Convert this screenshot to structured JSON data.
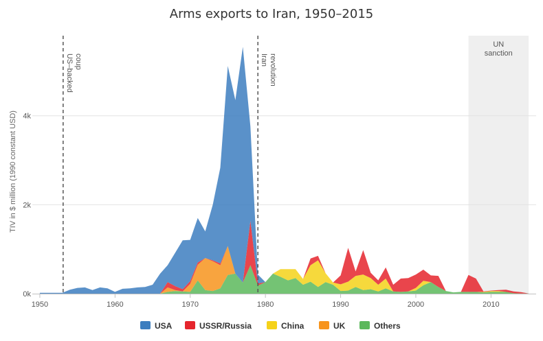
{
  "chart_data": {
    "type": "area",
    "stacked": true,
    "title": "Arms exports to Iran, 1950–2015",
    "ylabel": "TIV in $ million (1990 constant USD)",
    "xlim": [
      1949,
      2016
    ],
    "ylim": [
      0,
      5800
    ],
    "grid": "horizontal",
    "legend_position": "bottom",
    "x_ticks": [
      1950,
      1960,
      1970,
      1980,
      1990,
      2000,
      2010
    ],
    "x_tick_labels": [
      "1950",
      "1960",
      "1970",
      "1980",
      "1990",
      "2000",
      "2010"
    ],
    "y_ticks": [
      0,
      2000,
      4000
    ],
    "y_tick_labels": [
      "0k",
      "2k",
      "4k"
    ],
    "x": [
      1950,
      1951,
      1952,
      1953,
      1954,
      1955,
      1956,
      1957,
      1958,
      1959,
      1960,
      1961,
      1962,
      1963,
      1964,
      1965,
      1966,
      1967,
      1968,
      1969,
      1970,
      1971,
      1972,
      1973,
      1974,
      1975,
      1976,
      1977,
      1978,
      1979,
      1980,
      1981,
      1982,
      1983,
      1984,
      1985,
      1986,
      1987,
      1988,
      1989,
      1990,
      1991,
      1992,
      1993,
      1994,
      1995,
      1996,
      1997,
      1998,
      1999,
      2000,
      2001,
      2002,
      2003,
      2004,
      2005,
      2006,
      2007,
      2008,
      2009,
      2010,
      2011,
      2012,
      2013,
      2014,
      2015
    ],
    "series": [
      {
        "name": "Others",
        "color": "#5cb85c",
        "values": [
          0,
          0,
          0,
          0,
          0,
          0,
          0,
          0,
          0,
          0,
          0,
          0,
          0,
          0,
          0,
          0,
          0,
          40,
          60,
          50,
          40,
          300,
          80,
          60,
          120,
          420,
          450,
          250,
          640,
          180,
          260,
          450,
          380,
          300,
          350,
          200,
          270,
          150,
          260,
          200,
          60,
          70,
          150,
          80,
          100,
          50,
          120,
          50,
          40,
          50,
          70,
          190,
          260,
          150,
          60,
          30,
          40,
          40,
          40,
          30,
          40,
          40,
          40,
          10,
          5,
          5
        ]
      },
      {
        "name": "UK",
        "color": "#f7941d",
        "values": [
          0,
          0,
          0,
          0,
          0,
          0,
          0,
          0,
          0,
          0,
          0,
          0,
          0,
          0,
          0,
          0,
          0,
          100,
          20,
          0,
          180,
          350,
          720,
          670,
          520,
          650,
          0,
          0,
          0,
          0,
          0,
          0,
          0,
          0,
          0,
          0,
          0,
          0,
          0,
          0,
          0,
          0,
          0,
          0,
          0,
          0,
          0,
          0,
          0,
          0,
          0,
          0,
          0,
          0,
          0,
          0,
          0,
          0,
          0,
          0,
          0,
          0,
          0,
          0,
          0,
          0
        ]
      },
      {
        "name": "China",
        "color": "#f5d21a",
        "values": [
          0,
          0,
          0,
          0,
          0,
          0,
          0,
          0,
          0,
          0,
          0,
          0,
          0,
          0,
          0,
          0,
          0,
          0,
          0,
          0,
          0,
          0,
          0,
          0,
          0,
          0,
          0,
          0,
          0,
          0,
          0,
          0,
          170,
          250,
          200,
          130,
          370,
          600,
          200,
          50,
          150,
          200,
          250,
          350,
          250,
          150,
          220,
          0,
          0,
          0,
          60,
          100,
          0,
          0,
          0,
          0,
          0,
          0,
          0,
          10,
          20,
          20,
          0,
          0,
          0,
          0
        ]
      },
      {
        "name": "USSR/Russia",
        "color": "#e5252d",
        "values": [
          0,
          0,
          0,
          0,
          0,
          0,
          0,
          0,
          0,
          0,
          0,
          0,
          0,
          0,
          0,
          0,
          0,
          120,
          90,
          50,
          60,
          50,
          0,
          20,
          40,
          0,
          0,
          0,
          1000,
          50,
          0,
          0,
          0,
          0,
          0,
          0,
          150,
          100,
          0,
          0,
          200,
          760,
          100,
          550,
          120,
          100,
          250,
          150,
          300,
          300,
          300,
          250,
          150,
          250,
          0,
          0,
          0,
          380,
          300,
          10,
          10,
          20,
          50,
          40,
          30,
          0
        ]
      },
      {
        "name": "USA",
        "color": "#3d7ebf",
        "values": [
          20,
          20,
          20,
          20,
          90,
          130,
          140,
          80,
          140,
          120,
          40,
          110,
          120,
          140,
          150,
          200,
          450,
          380,
          750,
          1100,
          930,
          1000,
          600,
          1250,
          2150,
          4050,
          3900,
          5300,
          2120,
          200,
          0,
          0,
          0,
          0,
          0,
          0,
          0,
          0,
          0,
          0,
          0,
          0,
          0,
          0,
          0,
          0,
          0,
          0,
          0,
          0,
          0,
          0,
          0,
          0,
          0,
          0,
          0,
          0,
          0,
          0,
          0,
          0,
          0,
          0,
          0,
          0
        ]
      }
    ],
    "legend_order": [
      "USA",
      "USSR/Russia",
      "China",
      "UK",
      "Others"
    ],
    "annotations": {
      "lines": [
        {
          "x": 1953.1,
          "label": "US-backed coup"
        },
        {
          "x": 1979,
          "label": "Iran revolution"
        }
      ],
      "band": {
        "from": 2007,
        "to": 2015,
        "label": "UN sanction"
      }
    }
  },
  "text": {
    "title": "Arms exports to Iran, 1950–2015",
    "ylabel": "TIV in $ million (1990 constant USD)",
    "coup_line1": "US–backed",
    "coup_line2": "coup",
    "rev_line1": "Iran",
    "rev_line2": "revolution",
    "sanction_line1": "UN",
    "sanction_line2": "sanction"
  },
  "legend": {
    "usa": "USA",
    "ussr": "USSR/Russia",
    "china": "China",
    "uk": "UK",
    "others": "Others"
  }
}
